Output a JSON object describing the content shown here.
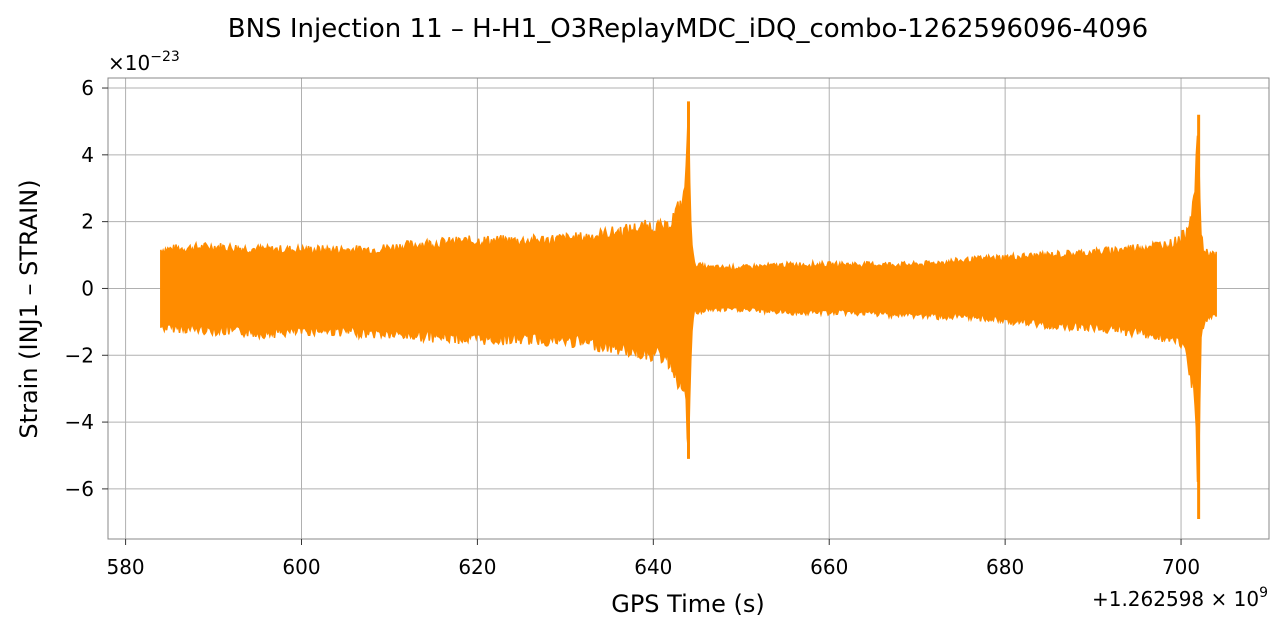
{
  "chart_data": {
    "type": "line",
    "title": "BNS Injection 11 – H-H1_O3ReplayMDC_iDQ_combo-1262596096-4096",
    "xlabel": "GPS Time (s)",
    "ylabel": "Strain (INJ1 – STRAIN)",
    "x_offset_label": "+1.262598 × 10",
    "x_offset_exp": "9",
    "y_scale_label": "×10",
    "y_scale_exp": "−23",
    "xlim": [
      578,
      710
    ],
    "ylim": [
      -7.5,
      6.3
    ],
    "xticks": [
      580,
      600,
      620,
      640,
      660,
      680,
      700
    ],
    "xtick_labels": [
      "580",
      "600",
      "620",
      "640",
      "660",
      "680",
      "700"
    ],
    "yticks": [
      -6,
      -4,
      -2,
      0,
      2,
      4,
      6
    ],
    "ytick_labels": [
      "−6",
      "−4",
      "−2",
      "0",
      "2",
      "4",
      "6"
    ],
    "grid": true,
    "series": [
      {
        "color": "#ff8c00",
        "envelope": {
          "x": [
            584,
            590,
            596,
            602,
            608,
            614,
            620,
            626,
            632,
            636,
            638,
            640,
            641.5,
            642.5,
            643.5,
            644.0,
            644.3,
            644.6,
            645,
            646,
            650,
            656,
            662,
            670,
            678,
            684,
            690,
            696,
            699,
            700.5,
            701.5,
            702.0,
            702.2,
            702.5,
            703,
            704
          ],
          "upper": [
            1.3,
            1.4,
            1.3,
            1.3,
            1.3,
            1.5,
            1.6,
            1.6,
            1.7,
            1.9,
            2.0,
            2.1,
            2.0,
            2.5,
            3.0,
            5.6,
            2.0,
            0.8,
            0.8,
            0.7,
            0.7,
            0.8,
            0.8,
            0.8,
            1.0,
            1.1,
            1.2,
            1.4,
            1.5,
            1.8,
            3.0,
            5.2,
            2.0,
            1.3,
            1.2,
            1.1
          ],
          "lower": [
            -1.3,
            -1.4,
            -1.5,
            -1.4,
            -1.5,
            -1.6,
            -1.7,
            -1.7,
            -1.8,
            -2.0,
            -2.1,
            -2.2,
            -2.3,
            -2.8,
            -3.5,
            -5.1,
            -2.0,
            -0.8,
            -0.8,
            -0.7,
            -0.7,
            -0.8,
            -0.8,
            -0.9,
            -1.0,
            -1.2,
            -1.3,
            -1.5,
            -1.7,
            -2.0,
            -3.5,
            -6.9,
            -2.0,
            -1.3,
            -1.0,
            -0.9
          ]
        }
      }
    ]
  }
}
